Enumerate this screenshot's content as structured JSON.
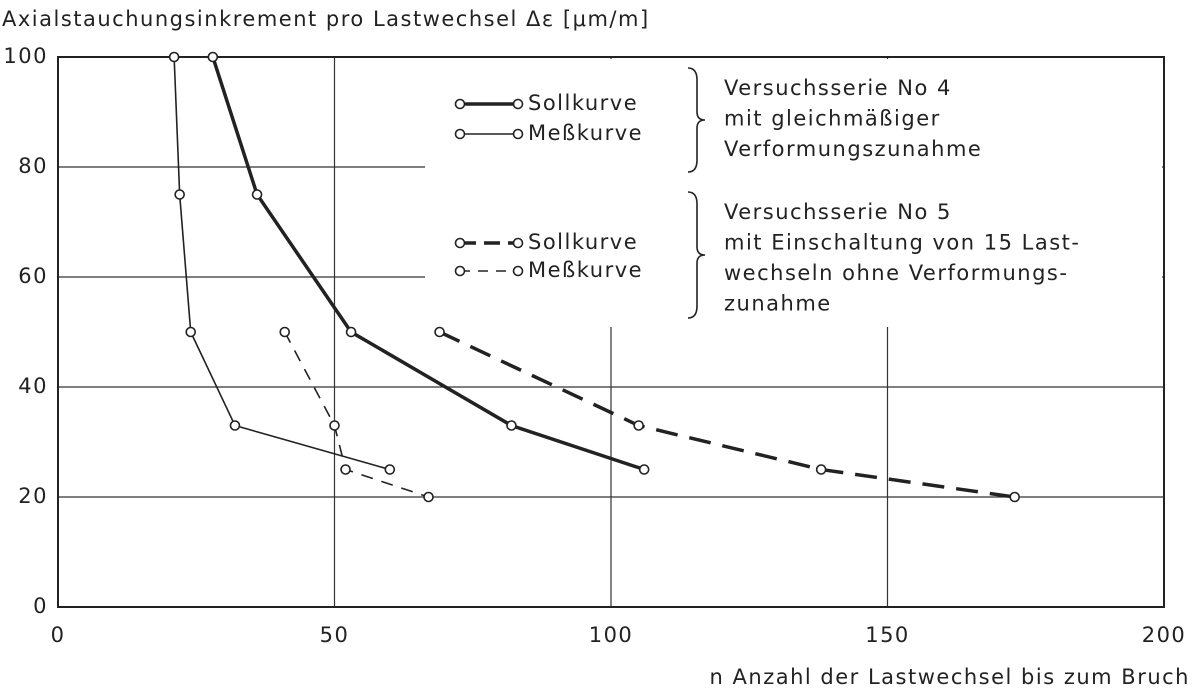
{
  "chart_data": {
    "type": "line",
    "title": "Axialstauchungsinkrement pro Lastwechsel Δε [μm/m]",
    "x_label": "n Anzahl der Lastwechsel bis zum Bruch",
    "xlim": [
      0,
      200
    ],
    "xticks": [
      0,
      50,
      100,
      150,
      200
    ],
    "ylim": [
      0,
      100
    ],
    "yticks": [
      0,
      20,
      40,
      60,
      80,
      100
    ],
    "grid": true,
    "series": [
      {
        "name": "Sollkurve",
        "color": "#222222",
        "linestyle": "solid",
        "linewidth": 3.5,
        "x": [
          28,
          36,
          53,
          82,
          106
        ],
        "values": [
          100,
          75,
          50,
          33,
          25
        ]
      },
      {
        "name": "Meßkurve",
        "color": "#222222",
        "linestyle": "solid",
        "linewidth": 1.6,
        "x": [
          21,
          22,
          24,
          32,
          60
        ],
        "values": [
          100,
          75,
          50,
          33,
          25
        ]
      },
      {
        "name": "Sollkurve",
        "color": "#222222",
        "linestyle": "dashed",
        "linewidth": 3.5,
        "x": [
          69,
          105,
          138,
          173
        ],
        "values": [
          50,
          33,
          25,
          20
        ]
      },
      {
        "name": "Meßkurve",
        "color": "#222222",
        "linestyle": "dashed",
        "linewidth": 1.6,
        "x": [
          41,
          50,
          52,
          67
        ],
        "values": [
          50,
          33,
          25,
          20
        ]
      }
    ],
    "annotations": [
      [
        "Versuchsserie No 4",
        "mit gleichmäßiger",
        "Verformungszunahme"
      ],
      [
        "Versuchsserie No 5",
        "mit Einschaltung von 15 Last-",
        "wechseln ohne Verformungs-",
        "zunahme"
      ]
    ]
  }
}
